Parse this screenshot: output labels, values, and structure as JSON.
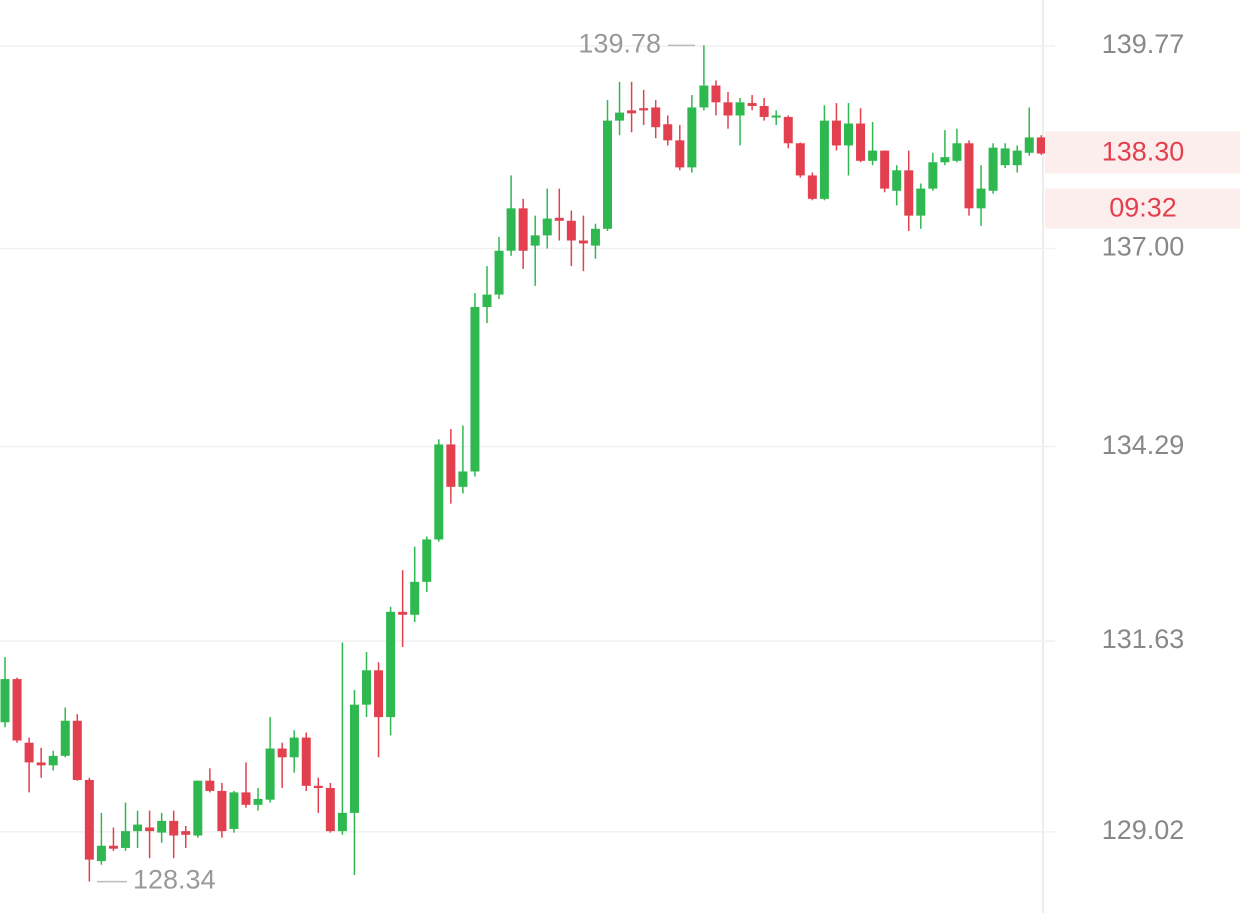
{
  "chart_data": {
    "type": "candlestick",
    "open": [
      130.52,
      131.11,
      130.24,
      129.97,
      129.93,
      130.06,
      130.54,
      129.73,
      128.62,
      128.83,
      128.8,
      129.03,
      129.08,
      129.01,
      129.17,
      129.03,
      128.97,
      129.72,
      129.58,
      129.06,
      129.56,
      129.39,
      129.46,
      130.16,
      130.04,
      130.31,
      129.65,
      129.62,
      129.03,
      129.28,
      130.76,
      131.23,
      130.59,
      132.03,
      131.99,
      132.44,
      133.02,
      134.32,
      133.74,
      133.95,
      136.2,
      136.37,
      136.97,
      137.55,
      137.04,
      137.18,
      137.42,
      137.38,
      137.11,
      137.04,
      137.27,
      138.75,
      138.89,
      138.92,
      138.93,
      138.7,
      138.48,
      138.11,
      138.93,
      139.23,
      139.0,
      138.82,
      138.99,
      138.95,
      138.8,
      138.8,
      138.44,
      138.0,
      137.68,
      138.75,
      138.41,
      138.71,
      138.2,
      138.34,
      137.79,
      138.07,
      137.45,
      137.82,
      138.18,
      138.2,
      138.44,
      137.55,
      137.79,
      138.14,
      138.14,
      138.31,
      138.52
    ],
    "high": [
      131.41,
      131.13,
      130.31,
      130.17,
      130.13,
      130.72,
      130.63,
      129.76,
      129.28,
      129.08,
      129.42,
      129.31,
      129.31,
      129.28,
      129.31,
      129.1,
      129.72,
      129.89,
      129.69,
      129.58,
      129.97,
      129.62,
      130.59,
      130.24,
      130.41,
      130.38,
      129.76,
      129.69,
      131.61,
      130.96,
      131.48,
      131.34,
      132.1,
      132.6,
      132.92,
      133.06,
      134.39,
      134.53,
      134.58,
      136.39,
      136.76,
      137.16,
      138.0,
      137.68,
      137.45,
      137.82,
      137.82,
      137.52,
      137.45,
      137.34,
      139.03,
      139.28,
      139.28,
      139.17,
      139.03,
      138.82,
      138.69,
      139.1,
      139.78,
      139.3,
      139.14,
      139.06,
      139.1,
      139.06,
      138.89,
      138.82,
      138.45,
      138.04,
      138.96,
      138.99,
      138.99,
      138.92,
      138.73,
      138.34,
      138.14,
      138.34,
      137.89,
      138.31,
      138.62,
      138.64,
      138.48,
      138.14,
      138.44,
      138.44,
      138.41,
      138.93,
      138.55
    ],
    "low": [
      130.45,
      130.24,
      129.56,
      129.76,
      129.86,
      130.04,
      129.72,
      128.34,
      128.57,
      128.76,
      128.76,
      128.8,
      128.66,
      128.87,
      128.66,
      128.8,
      128.94,
      129.56,
      128.94,
      129.01,
      129.35,
      129.31,
      129.42,
      129.62,
      129.83,
      129.58,
      129.28,
      129.01,
      128.98,
      128.43,
      130.59,
      130.04,
      130.34,
      131.55,
      131.89,
      132.3,
      132.99,
      133.51,
      133.65,
      133.88,
      135.98,
      136.31,
      136.9,
      136.72,
      136.49,
      137.0,
      137.11,
      136.76,
      136.69,
      136.86,
      137.24,
      138.55,
      138.59,
      138.69,
      138.51,
      138.41,
      138.07,
      138.04,
      138.89,
      138.82,
      138.64,
      138.41,
      138.89,
      138.75,
      138.69,
      138.37,
      137.97,
      137.66,
      137.66,
      138.34,
      138.0,
      138.18,
      138.14,
      137.77,
      137.59,
      137.24,
      137.27,
      137.79,
      138.14,
      138.18,
      137.45,
      137.31,
      137.75,
      138.1,
      138.04,
      138.27,
      138.28
    ],
    "close": [
      131.11,
      130.27,
      129.97,
      129.93,
      130.06,
      130.54,
      129.73,
      128.64,
      128.83,
      128.79,
      129.03,
      129.12,
      129.03,
      129.17,
      128.97,
      128.98,
      129.72,
      129.58,
      129.03,
      129.56,
      129.39,
      129.47,
      130.16,
      130.04,
      130.31,
      129.65,
      129.62,
      129.03,
      129.28,
      130.76,
      131.23,
      130.59,
      132.03,
      131.99,
      132.44,
      133.02,
      134.32,
      133.74,
      133.95,
      136.2,
      136.37,
      136.97,
      137.55,
      136.97,
      137.18,
      137.41,
      137.38,
      137.11,
      137.07,
      137.27,
      138.75,
      138.86,
      138.85,
      138.89,
      138.66,
      138.48,
      138.11,
      138.93,
      139.23,
      139.0,
      138.82,
      139.0,
      138.95,
      138.8,
      138.82,
      138.44,
      138.0,
      137.68,
      138.75,
      138.41,
      138.71,
      138.2,
      138.34,
      137.82,
      138.07,
      137.45,
      137.82,
      138.18,
      138.25,
      138.44,
      137.55,
      137.82,
      138.38,
      138.37,
      138.34,
      138.52,
      138.3
    ],
    "up_color": "#2fb84f",
    "down_color": "#e2404f",
    "ylim": [
      127.91,
      140.4
    ],
    "yticks": [
      139.77,
      {
        "value": 137,
        "label": "137.00"
      },
      134.29,
      131.63,
      129.02
    ],
    "grid": true,
    "max_marker": 139.78,
    "min_marker": 128.34,
    "last_price": {
      "value": 138.3,
      "label": "138.30"
    },
    "last_time": "09:32"
  }
}
